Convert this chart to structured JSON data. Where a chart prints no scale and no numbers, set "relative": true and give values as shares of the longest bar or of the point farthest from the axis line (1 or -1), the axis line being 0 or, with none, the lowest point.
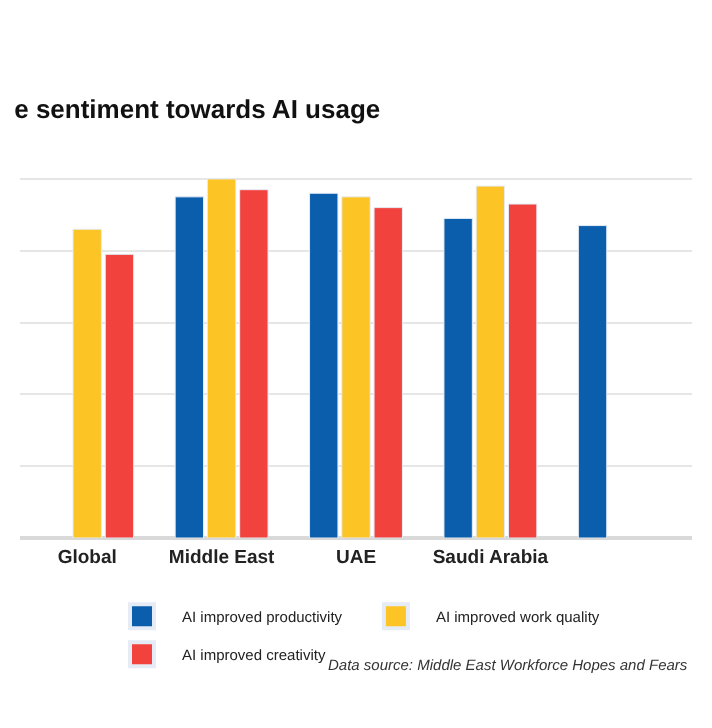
{
  "chart_data": {
    "type": "bar",
    "title": "e sentiment towards AI usage",
    "relative": true,
    "grid": "y",
    "legend": "bottom",
    "categories": [
      "Global",
      "Middle East",
      "UAE",
      "Saudi Arabia",
      null
    ],
    "series": [
      {
        "name": "AI improved productivity",
        "color": "#0a5eac",
        "values": [
          null,
          0.95,
          0.96,
          0.89,
          0.87
        ]
      },
      {
        "name": "AI improved work quality",
        "color": "#fcc425",
        "values": [
          0.86,
          1,
          0.95,
          0.98,
          null
        ]
      },
      {
        "name": "AI improved creativity",
        "color": "#f2423d",
        "values": [
          0.79,
          0.97,
          0.92,
          0.93,
          null
        ]
      }
    ],
    "annotations": [
      "Data source: Middle East Workforce Hopes and Fears"
    ]
  }
}
